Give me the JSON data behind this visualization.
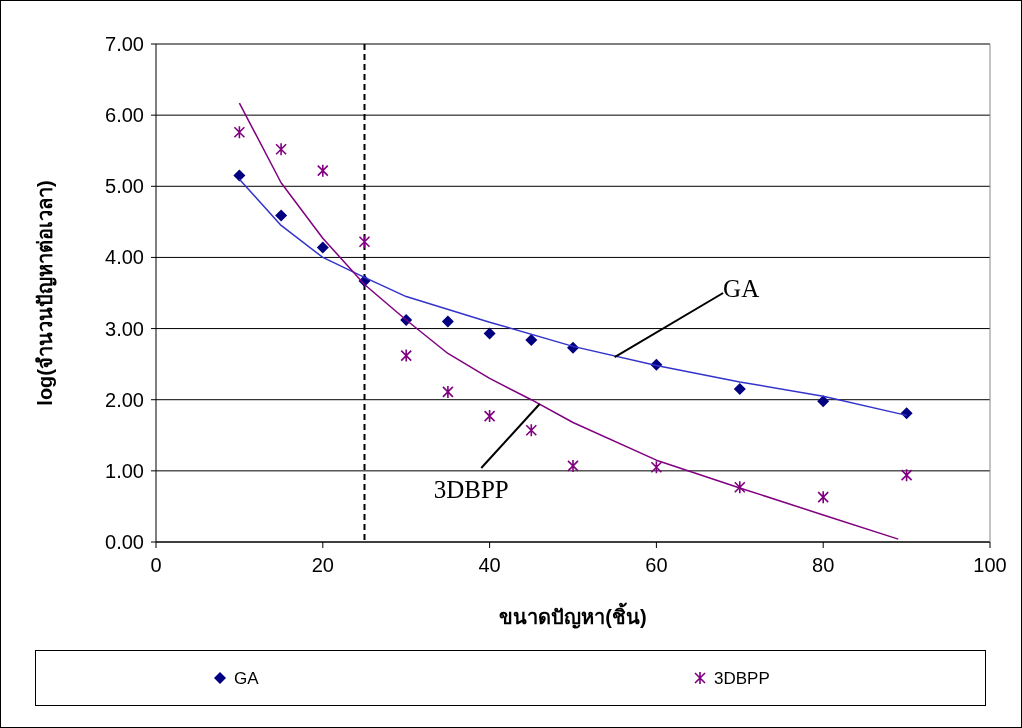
{
  "chart_data": {
    "type": "scatter",
    "xlabel": "ขนาดปัญหา(ชิ้น)",
    "ylabel": "log(จำนวนปัญหาต่อเวลา)",
    "xlim": [
      0,
      100
    ],
    "xticks": [
      0,
      20,
      40,
      60,
      80,
      100
    ],
    "ylim": [
      0,
      7
    ],
    "yticks": [
      {
        "value": 0,
        "label": "0.00"
      },
      {
        "value": 1,
        "label": "1.00"
      },
      {
        "value": 2,
        "label": "2.00"
      },
      {
        "value": 3,
        "label": "3.00"
      },
      {
        "value": 4,
        "label": "4.00"
      },
      {
        "value": 5,
        "label": "5.00"
      },
      {
        "value": 6,
        "label": "6.00"
      },
      {
        "value": 7,
        "label": "7.00"
      }
    ],
    "grid": "y",
    "legend": "bottom",
    "series": [
      {
        "name": "GA",
        "marker": "diamond",
        "color": "#000080",
        "x": [
          10,
          15,
          20,
          25,
          30,
          35,
          40,
          45,
          50,
          60,
          70,
          80,
          90
        ],
        "values": [
          5.15,
          4.59,
          4.14,
          3.67,
          3.12,
          3.1,
          2.93,
          2.84,
          2.73,
          2.49,
          2.15,
          1.98,
          1.81
        ]
      },
      {
        "name": "3DBPP",
        "marker": "cross",
        "color": "#800080",
        "x": [
          10,
          15,
          20,
          25,
          30,
          35,
          40,
          45,
          50,
          60,
          70,
          80,
          90
        ],
        "values": [
          5.76,
          5.52,
          5.22,
          4.22,
          2.62,
          2.11,
          1.77,
          1.57,
          1.07,
          1.05,
          0.77,
          0.63,
          0.94
        ]
      },
      {
        "type": "line",
        "color": "#3333cc",
        "x": [
          10,
          15,
          20,
          25,
          30,
          40,
          50,
          60,
          70,
          80,
          90
        ],
        "values": [
          5.1,
          4.45,
          4.0,
          3.72,
          3.45,
          3.09,
          2.75,
          2.48,
          2.25,
          2.05,
          1.78
        ]
      },
      {
        "type": "line",
        "color": "#800080",
        "x": [
          10,
          15,
          20,
          25,
          30,
          35,
          40,
          45,
          50,
          60,
          70,
          80,
          89
        ],
        "values": [
          6.17,
          5.05,
          4.27,
          3.62,
          3.12,
          2.65,
          2.3,
          2.0,
          1.68,
          1.15,
          0.76,
          0.38,
          0.04
        ]
      }
    ],
    "ref_lines": [
      {
        "axis": "x",
        "value": 25,
        "line_style": "dashed",
        "color": "#000000"
      }
    ],
    "annotations": [
      {
        "text": "GA",
        "x": 55,
        "y": 2.6
      },
      {
        "text": "3DBPP",
        "x": 46,
        "y": 1.94
      }
    ]
  }
}
